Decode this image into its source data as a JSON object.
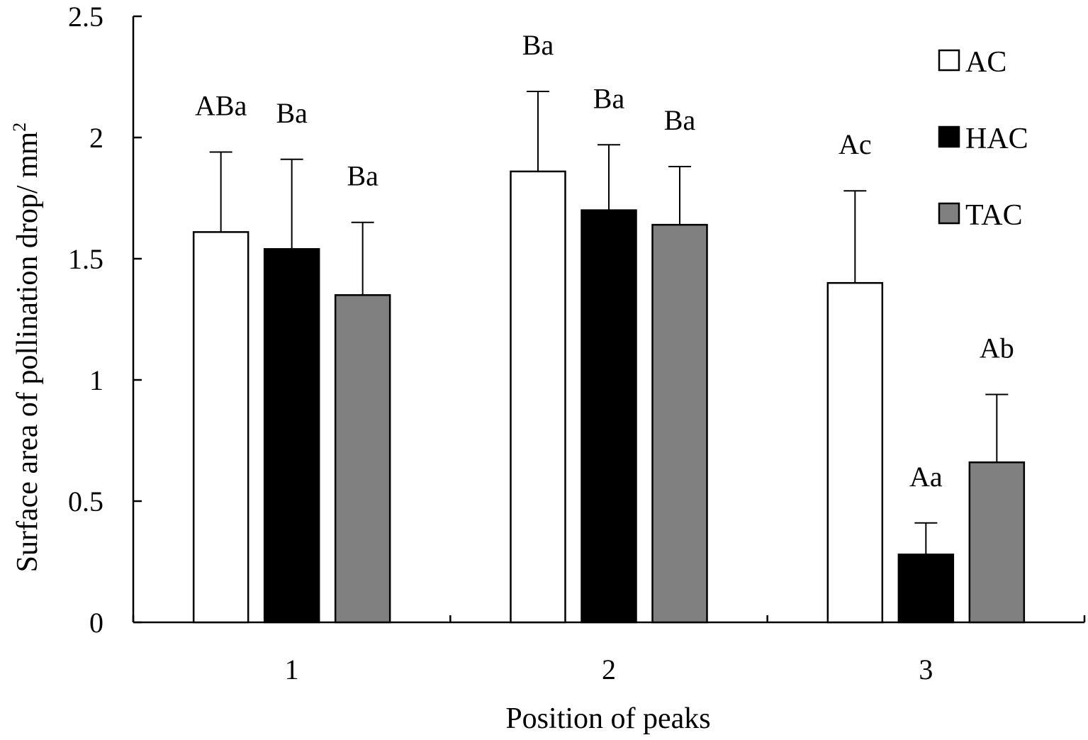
{
  "chart_data": {
    "type": "bar",
    "title": "",
    "xlabel": "Position of peaks",
    "ylabel": "Surface area of pollination drop/ mm",
    "ylabel_superscript": "2",
    "categories": [
      "1",
      "2",
      "3"
    ],
    "ylim": [
      0,
      2.5
    ],
    "yticks": [
      "0",
      "0.5",
      "1",
      "1.5",
      "2",
      "2.5"
    ],
    "grid": false,
    "legend_position": "top-right",
    "series": [
      {
        "name": "AC",
        "color": "#ffffff",
        "values": [
          1.61,
          1.86,
          1.4
        ],
        "errors": [
          0.33,
          0.33,
          0.38
        ],
        "labels": [
          "ABa",
          "Ba",
          "Ac"
        ]
      },
      {
        "name": "HAC",
        "color": "#000000",
        "values": [
          1.54,
          1.7,
          0.28
        ],
        "errors": [
          0.37,
          0.27,
          0.13
        ],
        "labels": [
          "Ba",
          "Ba",
          "Aa"
        ]
      },
      {
        "name": "TAC",
        "color": "#808080",
        "values": [
          1.35,
          1.64,
          0.66
        ],
        "errors": [
          0.3,
          0.24,
          0.28
        ],
        "labels": [
          "Ba",
          "Ba",
          "Ab"
        ]
      }
    ]
  }
}
